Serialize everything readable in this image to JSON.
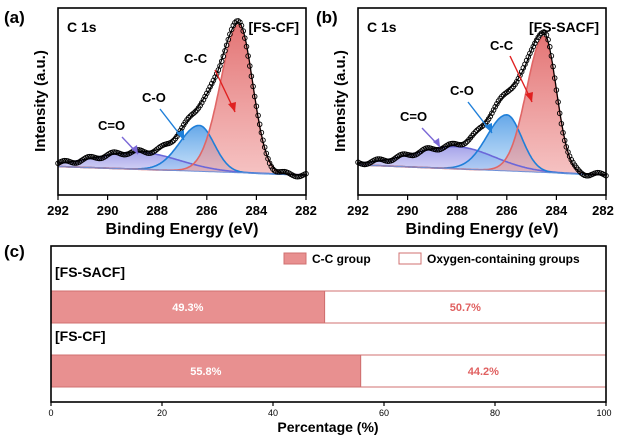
{
  "chart_data": [
    {
      "panel": "(a)",
      "type": "line",
      "title": "[FS-CF]",
      "core_level": "C 1s",
      "xlabel": "Binding Energy (eV)",
      "ylabel": "Intensity (a.u.)",
      "xlim": [
        292,
        282
      ],
      "x_ticks": [
        "292",
        "290",
        "288",
        "286",
        "284",
        "282"
      ],
      "peaks": [
        {
          "name": "C-C",
          "center": 284.7,
          "height": 0.87,
          "width_left": 0.75,
          "width_right": 0.55,
          "color": "#e06666"
        },
        {
          "name": "C-O",
          "center": 286.3,
          "height": 0.27,
          "width_left": 0.8,
          "width_right": 0.6,
          "color": "#1f7fd9"
        },
        {
          "name": "C=O",
          "center": 288.7,
          "height": 0.1,
          "width_left": 1.8,
          "width_right": 1.6,
          "color": "#6b67d9"
        }
      ],
      "background": {
        "left": 0.05,
        "right": 0.0
      },
      "annotations": [
        {
          "text": "C-C",
          "color": "#e02020"
        },
        {
          "text": "C-O",
          "color": "#1f7fd9"
        },
        {
          "text": "C=O",
          "color": "#7b68d6"
        }
      ]
    },
    {
      "panel": "(b)",
      "type": "line",
      "title": "[FS-SACF]",
      "core_level": "C 1s",
      "xlabel": "Binding Energy (eV)",
      "ylabel": "Intensity (a.u.)",
      "xlim": [
        292,
        282
      ],
      "x_ticks": [
        "292",
        "290",
        "288",
        "286",
        "284",
        "282"
      ],
      "peaks": [
        {
          "name": "C-C",
          "center": 284.5,
          "height": 0.8,
          "width_left": 0.7,
          "width_right": 0.5,
          "color": "#e06666"
        },
        {
          "name": "C-O",
          "center": 286.0,
          "height": 0.33,
          "width_left": 0.8,
          "width_right": 0.6,
          "color": "#1f7fd9"
        },
        {
          "name": "C=O",
          "center": 288.0,
          "height": 0.13,
          "width_left": 1.8,
          "width_right": 1.5,
          "color": "#6b67d9"
        }
      ],
      "background": {
        "left": 0.06,
        "right": 0.0
      },
      "annotations": [
        {
          "text": "C-C",
          "color": "#e02020"
        },
        {
          "text": "C-O",
          "color": "#1f7fd9"
        },
        {
          "text": "C=O",
          "color": "#7b68d6"
        }
      ]
    },
    {
      "panel": "(c)",
      "type": "bar",
      "orientation": "horizontal-stacked",
      "xlabel": "Percentage (%)",
      "xlim": [
        0,
        100
      ],
      "x_ticks": [
        "0",
        "20",
        "40",
        "60",
        "80",
        "100"
      ],
      "legend": [
        "C-C group",
        "Oxygen-containing groups"
      ],
      "bars": [
        {
          "label": "[FS-SACF]",
          "cc": 49.3,
          "oxygen": 50.7,
          "cc_text": "49.3%",
          "oxygen_text": "50.7%"
        },
        {
          "label": "[FS-CF]",
          "cc": 55.8,
          "oxygen": 44.2,
          "cc_text": "55.8%",
          "oxygen_text": "44.2%"
        }
      ],
      "colors": {
        "cc_fill": "#e89090",
        "cc_edge": "#d07070",
        "ox_fill": "#ffffff",
        "ox_edge": "#d07070",
        "cc_label": "#ffffff",
        "ox_label": "#e06060"
      }
    }
  ]
}
